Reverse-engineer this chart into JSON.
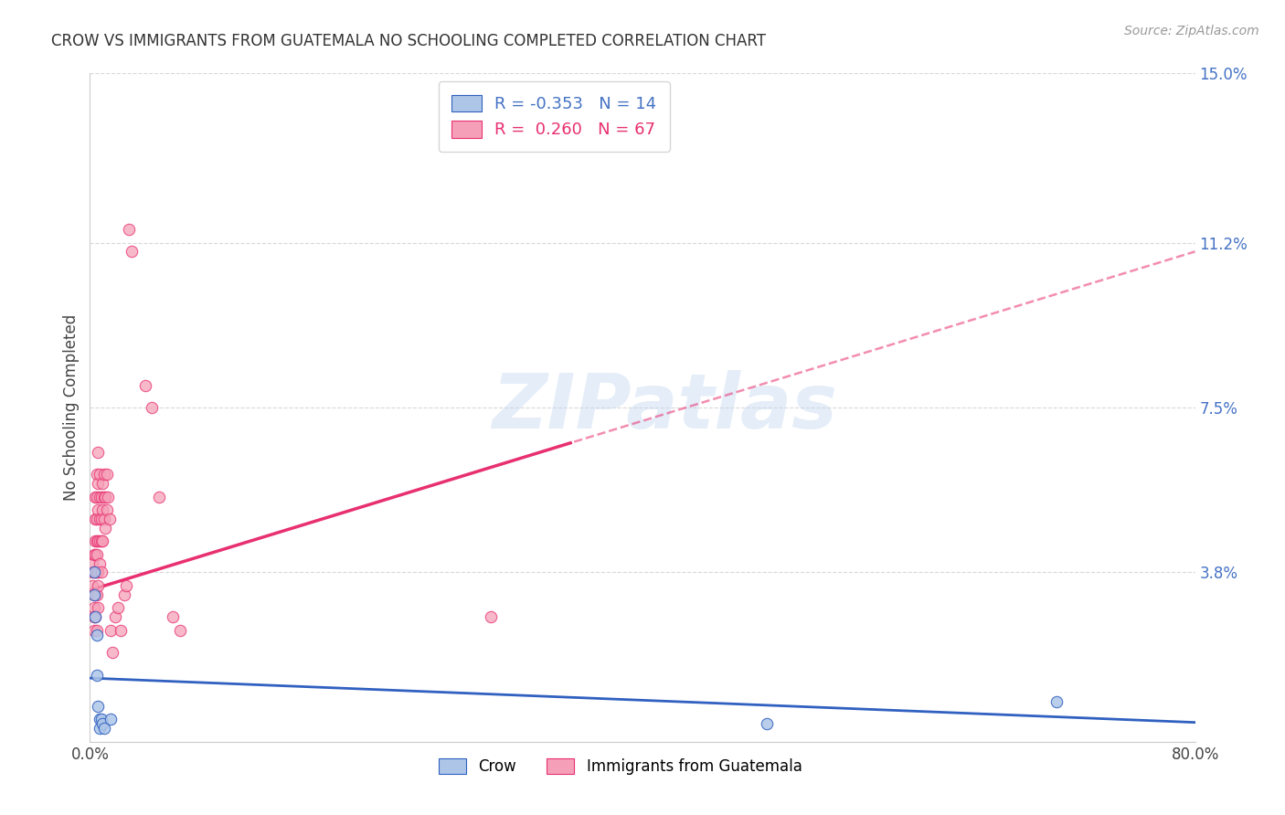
{
  "title": "CROW VS IMMIGRANTS FROM GUATEMALA NO SCHOOLING COMPLETED CORRELATION CHART",
  "source": "Source: ZipAtlas.com",
  "ylabel": "No Schooling Completed",
  "xlim": [
    0.0,
    0.8
  ],
  "ylim": [
    0.0,
    0.15
  ],
  "yticks": [
    0.0,
    0.038,
    0.075,
    0.112,
    0.15
  ],
  "ytick_labels": [
    "",
    "3.8%",
    "7.5%",
    "11.2%",
    "15.0%"
  ],
  "xticks": [
    0.0,
    0.1,
    0.2,
    0.3,
    0.4,
    0.5,
    0.6,
    0.7,
    0.8
  ],
  "xtick_labels": [
    "0.0%",
    "",
    "",
    "",
    "",
    "",
    "",
    "",
    "80.0%"
  ],
  "crow_R": -0.353,
  "crow_N": 14,
  "guatemala_R": 0.26,
  "guatemala_N": 67,
  "crow_color": "#adc6e8",
  "guatemala_color": "#f5a0b8",
  "crow_line_color": "#3060c0",
  "guatemala_line_color": "#e83070",
  "crow_points": [
    [
      0.003,
      0.038
    ],
    [
      0.003,
      0.033
    ],
    [
      0.004,
      0.028
    ],
    [
      0.005,
      0.024
    ],
    [
      0.005,
      0.015
    ],
    [
      0.006,
      0.008
    ],
    [
      0.007,
      0.005
    ],
    [
      0.007,
      0.003
    ],
    [
      0.008,
      0.005
    ],
    [
      0.009,
      0.004
    ],
    [
      0.01,
      0.003
    ],
    [
      0.015,
      0.005
    ],
    [
      0.49,
      0.004
    ],
    [
      0.7,
      0.009
    ]
  ],
  "guatemala_points": [
    [
      0.002,
      0.038
    ],
    [
      0.002,
      0.04
    ],
    [
      0.002,
      0.035
    ],
    [
      0.003,
      0.042
    ],
    [
      0.003,
      0.038
    ],
    [
      0.003,
      0.033
    ],
    [
      0.003,
      0.03
    ],
    [
      0.003,
      0.028
    ],
    [
      0.003,
      0.025
    ],
    [
      0.004,
      0.055
    ],
    [
      0.004,
      0.05
    ],
    [
      0.004,
      0.045
    ],
    [
      0.004,
      0.042
    ],
    [
      0.004,
      0.038
    ],
    [
      0.004,
      0.033
    ],
    [
      0.004,
      0.028
    ],
    [
      0.005,
      0.06
    ],
    [
      0.005,
      0.055
    ],
    [
      0.005,
      0.05
    ],
    [
      0.005,
      0.045
    ],
    [
      0.005,
      0.042
    ],
    [
      0.005,
      0.038
    ],
    [
      0.005,
      0.033
    ],
    [
      0.005,
      0.025
    ],
    [
      0.006,
      0.065
    ],
    [
      0.006,
      0.058
    ],
    [
      0.006,
      0.052
    ],
    [
      0.006,
      0.045
    ],
    [
      0.006,
      0.038
    ],
    [
      0.006,
      0.035
    ],
    [
      0.006,
      0.03
    ],
    [
      0.007,
      0.06
    ],
    [
      0.007,
      0.055
    ],
    [
      0.007,
      0.05
    ],
    [
      0.007,
      0.045
    ],
    [
      0.007,
      0.04
    ],
    [
      0.008,
      0.055
    ],
    [
      0.008,
      0.05
    ],
    [
      0.008,
      0.045
    ],
    [
      0.008,
      0.038
    ],
    [
      0.009,
      0.058
    ],
    [
      0.009,
      0.052
    ],
    [
      0.009,
      0.045
    ],
    [
      0.01,
      0.06
    ],
    [
      0.01,
      0.055
    ],
    [
      0.01,
      0.05
    ],
    [
      0.011,
      0.055
    ],
    [
      0.011,
      0.048
    ],
    [
      0.012,
      0.06
    ],
    [
      0.012,
      0.052
    ],
    [
      0.013,
      0.055
    ],
    [
      0.014,
      0.05
    ],
    [
      0.015,
      0.025
    ],
    [
      0.016,
      0.02
    ],
    [
      0.018,
      0.028
    ],
    [
      0.02,
      0.03
    ],
    [
      0.022,
      0.025
    ],
    [
      0.025,
      0.033
    ],
    [
      0.026,
      0.035
    ],
    [
      0.028,
      0.115
    ],
    [
      0.03,
      0.11
    ],
    [
      0.04,
      0.08
    ],
    [
      0.045,
      0.075
    ],
    [
      0.05,
      0.055
    ],
    [
      0.06,
      0.028
    ],
    [
      0.065,
      0.025
    ],
    [
      0.29,
      0.028
    ]
  ],
  "watermark": "ZIPatlas",
  "background_color": "#ffffff",
  "grid_color": "#d8d8d8",
  "crow_trend": [
    0.0,
    0.8,
    0.016,
    0.002
  ],
  "guatemala_trend_solid_end": 0.35,
  "guatemala_trend": [
    0.0,
    0.8,
    0.033,
    0.095
  ]
}
